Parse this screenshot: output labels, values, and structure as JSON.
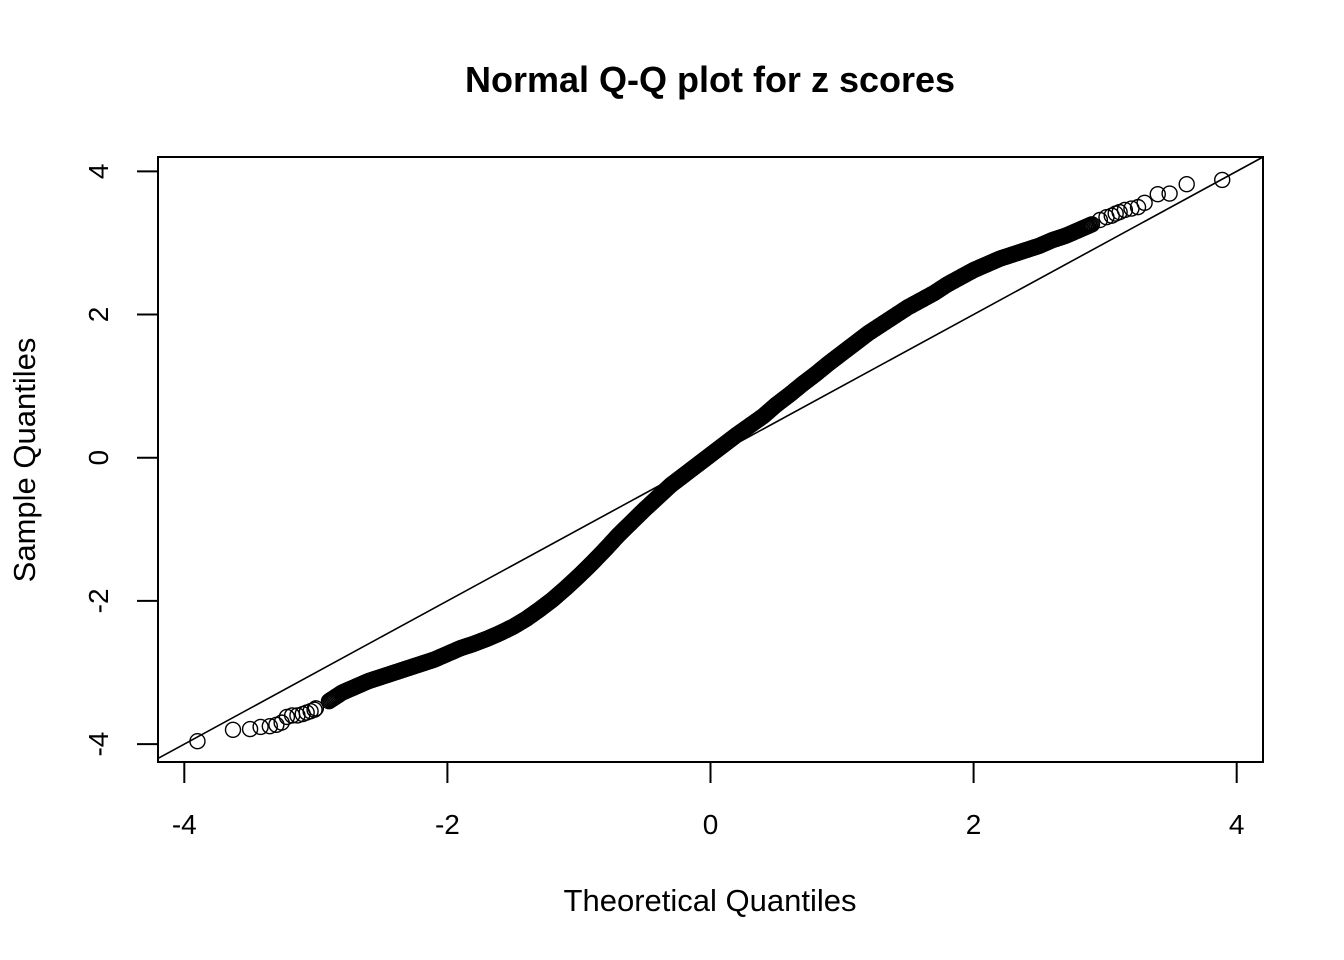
{
  "chart_data": {
    "type": "scatter",
    "title": "Normal Q-Q plot for z scores",
    "xlabel": "Theoretical Quantiles",
    "ylabel": "Sample Quantiles",
    "xlim": [
      -4.2,
      4.2
    ],
    "ylim": [
      -4.25,
      4.2
    ],
    "x_ticks": [
      -4,
      -2,
      0,
      2,
      4
    ],
    "y_ticks": [
      -4,
      -2,
      0,
      2,
      4
    ],
    "x_tick_labels": [
      "-4",
      "-2",
      "0",
      "2",
      "4"
    ],
    "y_tick_labels": [
      "-4",
      "-2",
      "0",
      "2",
      "4"
    ],
    "grid": false,
    "point_style": "open-circle",
    "reference_line": {
      "slope": 1.0,
      "intercept": 0.0
    },
    "series": [
      {
        "points": [
          {
            "x": -3.9,
            "y": -3.96
          },
          {
            "x": -3.63,
            "y": -3.8
          },
          {
            "x": -3.5,
            "y": -3.79
          },
          {
            "x": -3.42,
            "y": -3.76
          },
          {
            "x": -3.35,
            "y": -3.75
          },
          {
            "x": -3.3,
            "y": -3.73
          },
          {
            "x": -3.26,
            "y": -3.7
          },
          {
            "x": -3.22,
            "y": -3.62
          },
          {
            "x": -3.18,
            "y": -3.6
          },
          {
            "x": -3.14,
            "y": -3.6
          },
          {
            "x": -3.1,
            "y": -3.58
          },
          {
            "x": -3.07,
            "y": -3.56
          },
          {
            "x": -3.04,
            "y": -3.54
          },
          {
            "x": -3.01,
            "y": -3.52
          },
          {
            "x": -3.0,
            "y": -3.5
          },
          {
            "x": -2.9,
            "y": -3.4
          },
          {
            "x": -2.8,
            "y": -3.28
          },
          {
            "x": -2.7,
            "y": -3.2
          },
          {
            "x": -2.6,
            "y": -3.12
          },
          {
            "x": -2.5,
            "y": -3.06
          },
          {
            "x": -2.4,
            "y": -3.0
          },
          {
            "x": -2.3,
            "y": -2.94
          },
          {
            "x": -2.2,
            "y": -2.88
          },
          {
            "x": -2.1,
            "y": -2.82
          },
          {
            "x": -2.0,
            "y": -2.74
          },
          {
            "x": -1.9,
            "y": -2.66
          },
          {
            "x": -1.8,
            "y": -2.6
          },
          {
            "x": -1.7,
            "y": -2.53
          },
          {
            "x": -1.6,
            "y": -2.45
          },
          {
            "x": -1.5,
            "y": -2.36
          },
          {
            "x": -1.4,
            "y": -2.25
          },
          {
            "x": -1.3,
            "y": -2.12
          },
          {
            "x": -1.2,
            "y": -1.98
          },
          {
            "x": -1.1,
            "y": -1.82
          },
          {
            "x": -1.0,
            "y": -1.65
          },
          {
            "x": -0.9,
            "y": -1.47
          },
          {
            "x": -0.8,
            "y": -1.28
          },
          {
            "x": -0.7,
            "y": -1.08
          },
          {
            "x": -0.6,
            "y": -0.9
          },
          {
            "x": -0.5,
            "y": -0.72
          },
          {
            "x": -0.4,
            "y": -0.55
          },
          {
            "x": -0.3,
            "y": -0.38
          },
          {
            "x": -0.2,
            "y": -0.24
          },
          {
            "x": -0.1,
            "y": -0.1
          },
          {
            "x": 0.0,
            "y": 0.04
          },
          {
            "x": 0.1,
            "y": 0.18
          },
          {
            "x": 0.2,
            "y": 0.32
          },
          {
            "x": 0.3,
            "y": 0.45
          },
          {
            "x": 0.4,
            "y": 0.58
          },
          {
            "x": 0.5,
            "y": 0.74
          },
          {
            "x": 0.6,
            "y": 0.88
          },
          {
            "x": 0.7,
            "y": 1.03
          },
          {
            "x": 0.8,
            "y": 1.17
          },
          {
            "x": 0.9,
            "y": 1.32
          },
          {
            "x": 1.0,
            "y": 1.46
          },
          {
            "x": 1.1,
            "y": 1.6
          },
          {
            "x": 1.2,
            "y": 1.74
          },
          {
            "x": 1.3,
            "y": 1.86
          },
          {
            "x": 1.4,
            "y": 1.98
          },
          {
            "x": 1.5,
            "y": 2.1
          },
          {
            "x": 1.6,
            "y": 2.2
          },
          {
            "x": 1.7,
            "y": 2.3
          },
          {
            "x": 1.8,
            "y": 2.42
          },
          {
            "x": 1.9,
            "y": 2.52
          },
          {
            "x": 2.0,
            "y": 2.62
          },
          {
            "x": 2.1,
            "y": 2.7
          },
          {
            "x": 2.2,
            "y": 2.78
          },
          {
            "x": 2.3,
            "y": 2.84
          },
          {
            "x": 2.4,
            "y": 2.9
          },
          {
            "x": 2.5,
            "y": 2.96
          },
          {
            "x": 2.6,
            "y": 3.04
          },
          {
            "x": 2.7,
            "y": 3.1
          },
          {
            "x": 2.8,
            "y": 3.18
          },
          {
            "x": 2.9,
            "y": 3.26
          },
          {
            "x": 2.96,
            "y": 3.32
          },
          {
            "x": 3.01,
            "y": 3.36
          },
          {
            "x": 3.05,
            "y": 3.38
          },
          {
            "x": 3.08,
            "y": 3.41
          },
          {
            "x": 3.11,
            "y": 3.43
          },
          {
            "x": 3.15,
            "y": 3.46
          },
          {
            "x": 3.2,
            "y": 3.48
          },
          {
            "x": 3.25,
            "y": 3.5
          },
          {
            "x": 3.3,
            "y": 3.56
          },
          {
            "x": 3.4,
            "y": 3.68
          },
          {
            "x": 3.49,
            "y": 3.69
          },
          {
            "x": 3.62,
            "y": 3.82
          },
          {
            "x": 3.89,
            "y": 3.88
          }
        ]
      }
    ]
  }
}
